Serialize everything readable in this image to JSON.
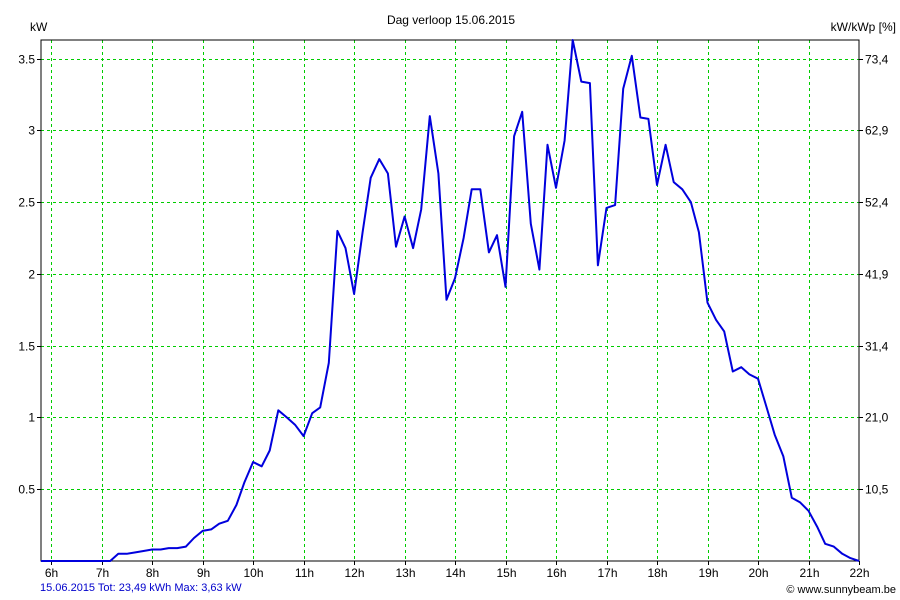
{
  "chart_data": {
    "type": "line",
    "title": "Dag  verloop 15.06.2015",
    "ylabel_left": "kW",
    "ylabel_right": "kW/kWp [%]",
    "xlim": [
      5.8,
      22
    ],
    "ylim": [
      0,
      3.63
    ],
    "x_ticks": [
      6,
      7,
      8,
      9,
      10,
      11,
      12,
      13,
      14,
      15,
      16,
      17,
      18,
      19,
      20,
      21,
      22
    ],
    "x_tick_labels": [
      "6h",
      "7h",
      "8h",
      "9h",
      "10h",
      "11h",
      "12h",
      "13h",
      "14h",
      "15h",
      "16h",
      "17h",
      "18h",
      "19h",
      "20h",
      "21h",
      "22h"
    ],
    "y_ticks_left": [
      0.5,
      1,
      1.5,
      2,
      2.5,
      3,
      3.5
    ],
    "y_tick_labels_left": [
      "0.5",
      "1",
      "1.5",
      "2",
      "2.5",
      "3",
      "3.5"
    ],
    "y_ticks_right": [
      0.5,
      1,
      1.5,
      2,
      2.5,
      3,
      3.5
    ],
    "y_tick_labels_right": [
      "10,5",
      "21,0",
      "31,4",
      "41,9",
      "52,4",
      "62,9",
      "73,4"
    ],
    "grid": true,
    "line_color": "#0000dd",
    "grid_color": "#00cc00",
    "series": [
      {
        "name": "",
        "x": [
          5.8,
          7.17,
          7.33,
          7.5,
          7.67,
          7.83,
          8.0,
          8.17,
          8.33,
          8.5,
          8.67,
          8.83,
          9.0,
          9.17,
          9.33,
          9.5,
          9.67,
          9.83,
          10.0,
          10.17,
          10.33,
          10.5,
          10.67,
          10.83,
          11.0,
          11.17,
          11.33,
          11.5,
          11.67,
          11.83,
          12.0,
          12.17,
          12.33,
          12.5,
          12.67,
          12.83,
          13.0,
          13.17,
          13.33,
          13.5,
          13.67,
          13.83,
          14.0,
          14.17,
          14.33,
          14.5,
          14.67,
          14.83,
          15.0,
          15.17,
          15.33,
          15.5,
          15.67,
          15.83,
          16.0,
          16.17,
          16.33,
          16.5,
          16.67,
          16.83,
          17.0,
          17.17,
          17.33,
          17.5,
          17.67,
          17.83,
          18.0,
          18.17,
          18.33,
          18.5,
          18.67,
          18.83,
          19.0,
          19.17,
          19.33,
          19.5,
          19.67,
          19.83,
          20.0,
          20.17,
          20.33,
          20.5,
          20.67,
          20.83,
          21.0,
          21.17,
          21.33,
          21.5,
          21.67,
          21.83,
          22.0
        ],
        "y": [
          0.0,
          0.0,
          0.05,
          0.05,
          0.06,
          0.07,
          0.08,
          0.08,
          0.09,
          0.09,
          0.1,
          0.16,
          0.21,
          0.22,
          0.26,
          0.28,
          0.39,
          0.55,
          0.69,
          0.66,
          0.77,
          1.05,
          1.0,
          0.95,
          0.87,
          1.03,
          1.07,
          1.38,
          2.3,
          2.18,
          1.86,
          2.29,
          2.67,
          2.8,
          2.7,
          2.19,
          2.4,
          2.18,
          2.45,
          3.1,
          2.7,
          1.82,
          1.97,
          2.25,
          2.59,
          2.59,
          2.15,
          2.27,
          1.91,
          2.96,
          3.13,
          2.35,
          2.03,
          2.9,
          2.6,
          2.93,
          3.63,
          3.34,
          3.33,
          2.06,
          2.46,
          2.48,
          3.29,
          3.52,
          3.09,
          3.08,
          2.62,
          2.9,
          2.64,
          2.59,
          2.5,
          2.29,
          1.8,
          1.68,
          1.6,
          1.32,
          1.35,
          1.3,
          1.27,
          1.07,
          0.88,
          0.73,
          0.44,
          0.41,
          0.35,
          0.24,
          0.12,
          0.1,
          0.05,
          0.02,
          0.0
        ]
      }
    ]
  },
  "footer": {
    "left": "15.06.2015 Tot: 23,49 kWh Max: 3,63 kW",
    "right": "© www.sunnybeam.be"
  }
}
